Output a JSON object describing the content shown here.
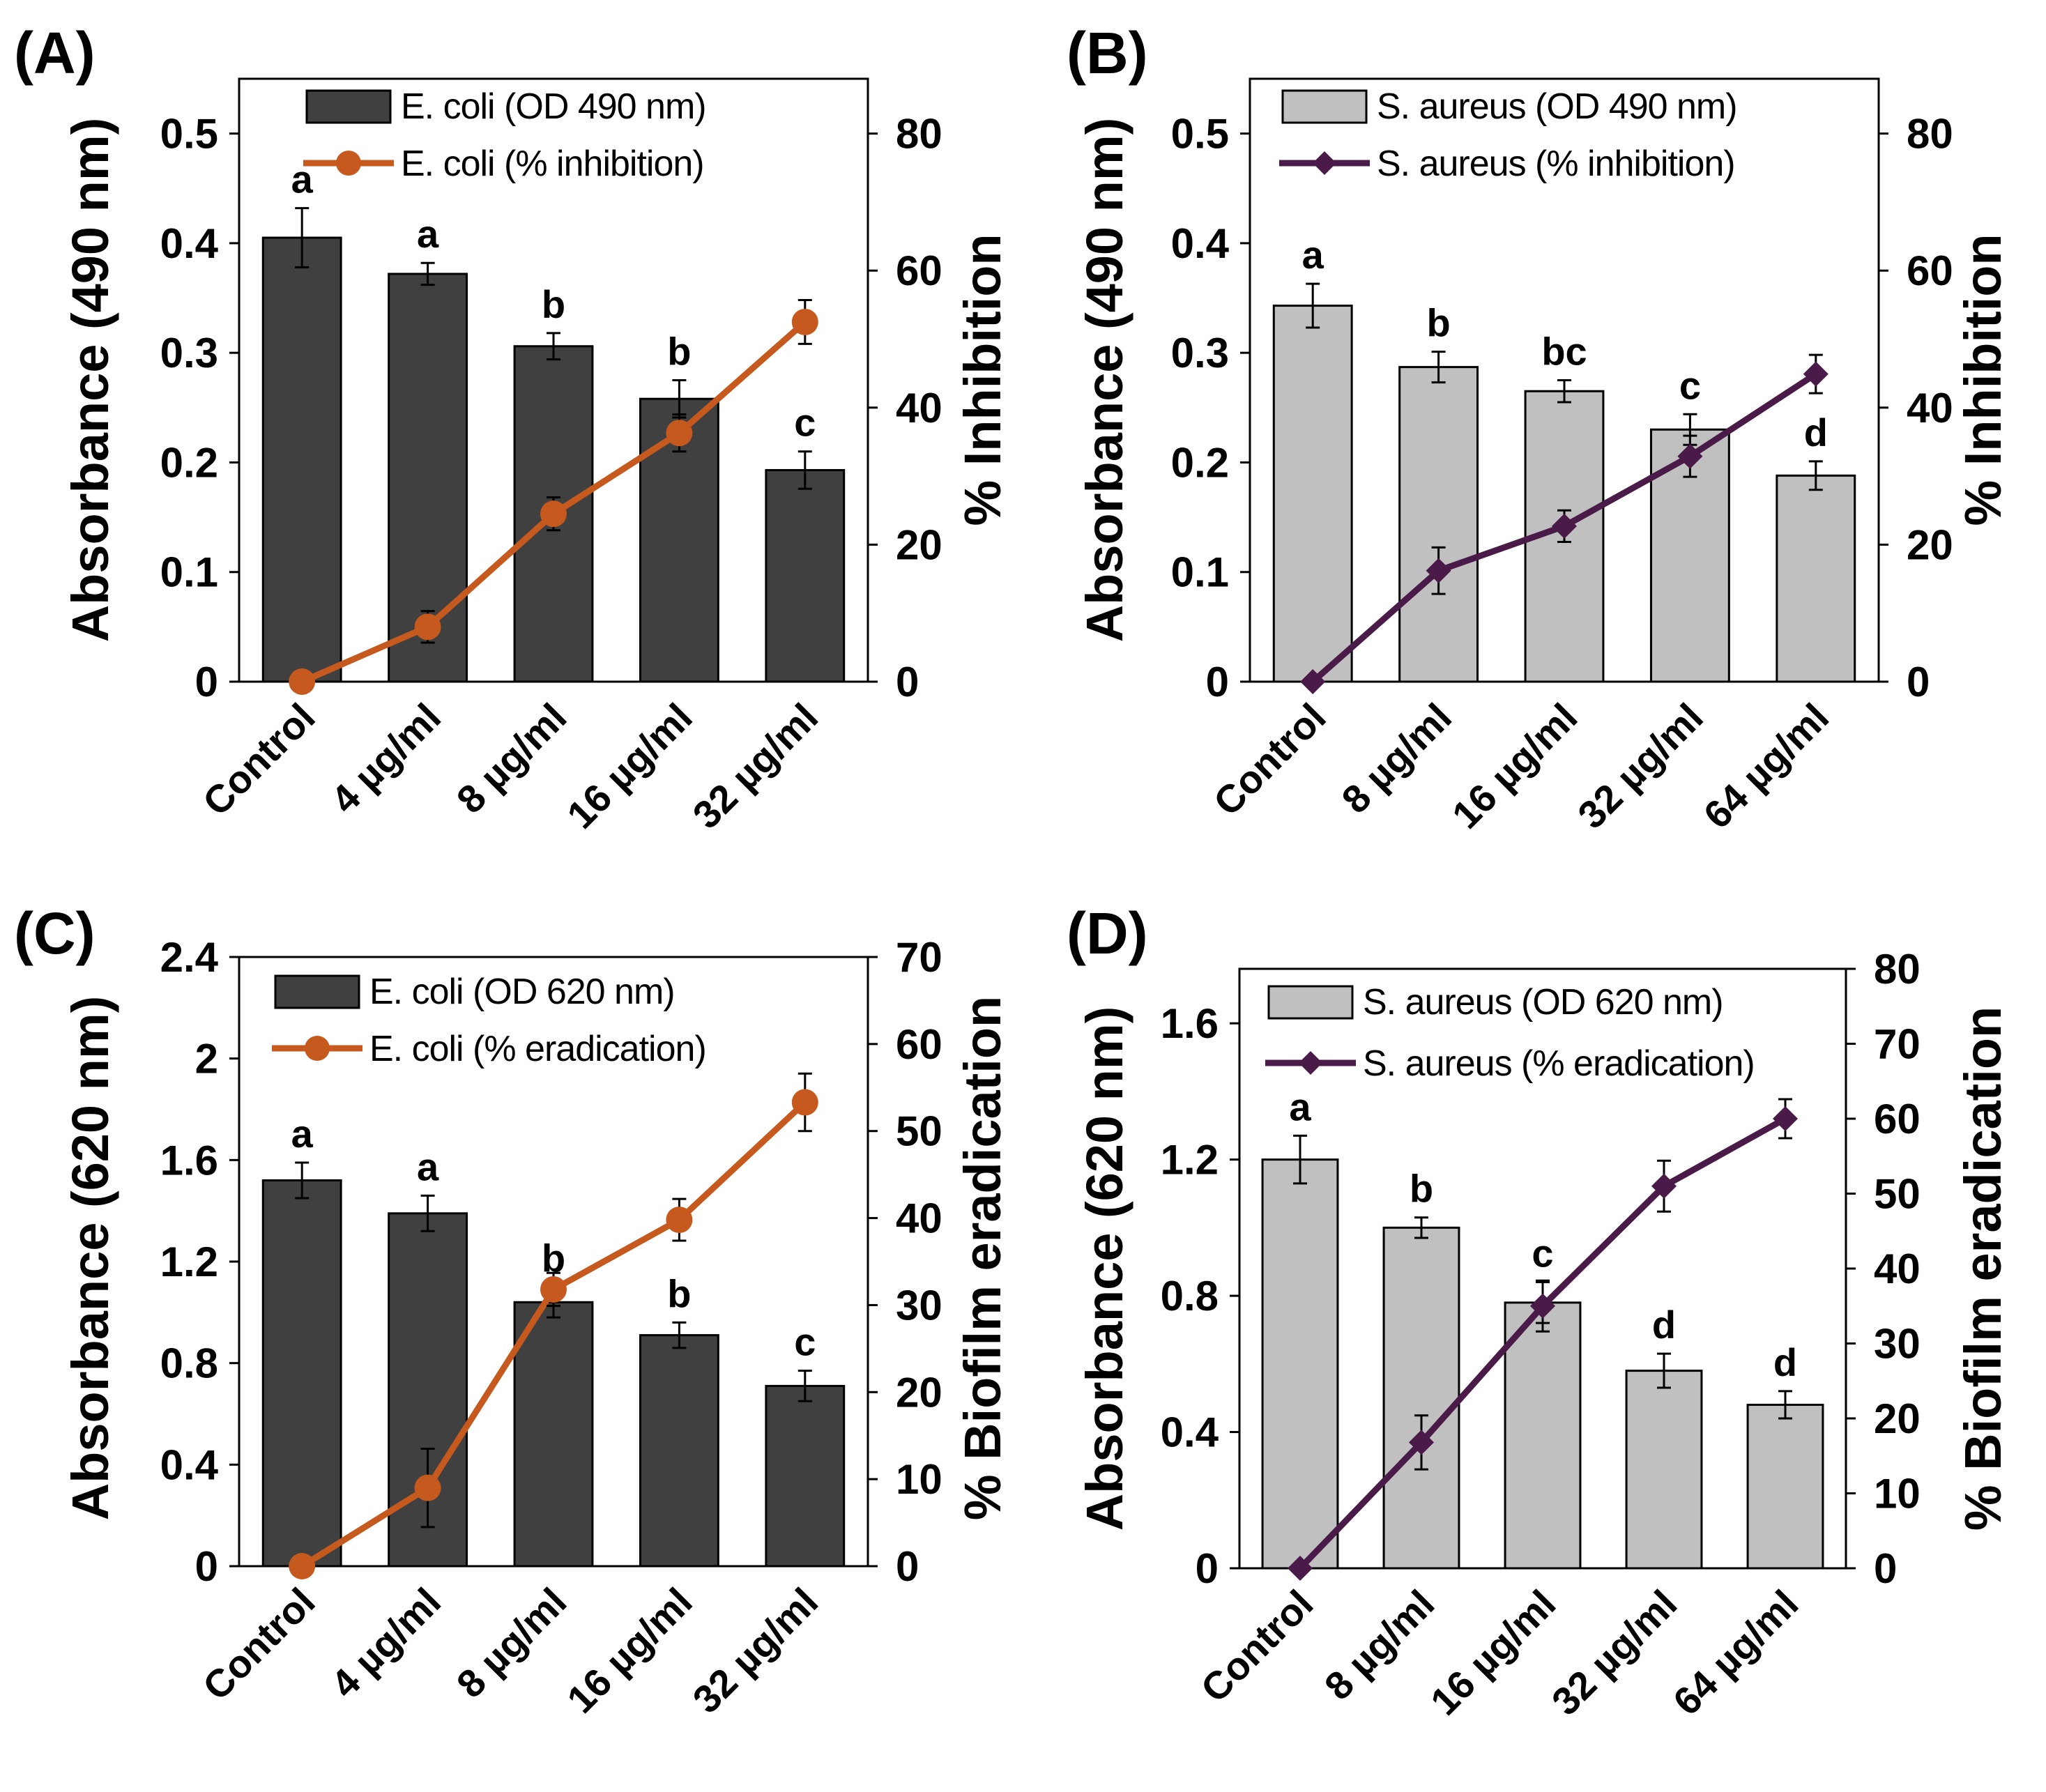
{
  "chart_data": [
    {
      "type": "bar",
      "panel_label": "(A)",
      "categories": [
        "Control",
        "4 µg/ml",
        "8 µg/ml",
        "16 µg/ml",
        "32 µg/ml"
      ],
      "ylabel": "Absorbance (490 nm)",
      "y2label": "% Inhibition",
      "ylim": [
        0,
        0.55
      ],
      "y2lim": [
        0,
        88
      ],
      "yticks": [
        "0",
        "0.1",
        "0.2",
        "0.3",
        "0.4",
        "0.5"
      ],
      "y2ticks": [
        "0",
        "20",
        "40",
        "60",
        "80"
      ],
      "bar_color": "#404040",
      "line_color": "#c65a1e",
      "marker": "circle",
      "legend_position": "top",
      "series": [
        {
          "name": "E. coli (OD 490 nm)",
          "kind": "bar",
          "axis": "left",
          "values": [
            0.405,
            0.372,
            0.306,
            0.258,
            0.193
          ],
          "errors": [
            0.027,
            0.01,
            0.012,
            0.017,
            0.017
          ],
          "significance": [
            "a",
            "a",
            "b",
            "b",
            "c"
          ]
        },
        {
          "name": "E. coli (% inhibition)",
          "kind": "line",
          "axis": "right",
          "values": [
            0,
            8,
            24.5,
            36.3,
            52.5
          ],
          "errors": [
            0,
            2.3,
            2.4,
            2.7,
            3.2
          ]
        }
      ]
    },
    {
      "type": "bar",
      "panel_label": "(B)",
      "categories": [
        "Control",
        "8 µg/ml",
        "16 µg/ml",
        "32 µg/ml",
        "64 µg/ml"
      ],
      "ylabel": "Absorbance (490 nm)",
      "y2label": "% Inhibition",
      "ylim": [
        0,
        0.55
      ],
      "y2lim": [
        0,
        88
      ],
      "yticks": [
        "0",
        "0.1",
        "0.2",
        "0.3",
        "0.4",
        "0.5"
      ],
      "y2ticks": [
        "0",
        "20",
        "40",
        "60",
        "80"
      ],
      "bar_color": "#c0c0c0",
      "line_color": "#4a1a48",
      "marker": "diamond",
      "legend_position": "top",
      "series": [
        {
          "name": "S. aureus (OD 490 nm)",
          "kind": "bar",
          "axis": "left",
          "values": [
            0.343,
            0.287,
            0.265,
            0.23,
            0.188
          ],
          "errors": [
            0.02,
            0.014,
            0.01,
            0.014,
            0.013
          ],
          "significance": [
            "a",
            "b",
            "bc",
            "c",
            "d"
          ]
        },
        {
          "name": "S. aureus (% inhibition)",
          "kind": "line",
          "axis": "right",
          "values": [
            0,
            16.2,
            22.7,
            32.9,
            44.9
          ],
          "errors": [
            0,
            3.4,
            2.3,
            3.0,
            2.8
          ]
        }
      ]
    },
    {
      "type": "bar",
      "panel_label": "(C)",
      "categories": [
        "Control",
        "4 µg/ml",
        "8 µg/ml",
        "16 µg/ml",
        "32 µg/ml"
      ],
      "ylabel": "Absorbance (620 nm)",
      "y2label": "% Biofilm eradication",
      "ylim": [
        0,
        2.4
      ],
      "y2lim": [
        0,
        70
      ],
      "yticks": [
        "0",
        "0.4",
        "0.8",
        "1.2",
        "1.6",
        "2",
        "2.4"
      ],
      "y2ticks": [
        "0",
        "10",
        "20",
        "30",
        "40",
        "50",
        "60",
        "70"
      ],
      "bar_color": "#404040",
      "line_color": "#c65a1e",
      "marker": "circle",
      "legend_position": "top",
      "series": [
        {
          "name": "E. coli (OD 620 nm)",
          "kind": "bar",
          "axis": "left",
          "values": [
            1.52,
            1.39,
            1.04,
            0.91,
            0.71
          ],
          "errors": [
            0.07,
            0.07,
            0.06,
            0.05,
            0.06
          ],
          "significance": [
            "a",
            "a",
            "b",
            "b",
            "c"
          ]
        },
        {
          "name": "E. coli (% eradication)",
          "kind": "line",
          "axis": "right",
          "values": [
            0,
            9,
            31.8,
            39.8,
            53.3
          ],
          "errors": [
            0,
            4.5,
            1.9,
            2.4,
            3.3
          ]
        }
      ]
    },
    {
      "type": "bar",
      "panel_label": "(D)",
      "categories": [
        "Control",
        "8 µg/ml",
        "16 µg/ml",
        "32 µg/ml",
        "64 µg/ml"
      ],
      "ylabel": "Absorbance (620 nm)",
      "y2label": "% Biofilm eradication",
      "ylim": [
        0,
        1.76
      ],
      "y2lim": [
        0,
        80
      ],
      "yticks": [
        "0",
        "0.4",
        "0.8",
        "1.2",
        "1.6"
      ],
      "y2ticks": [
        "0",
        "10",
        "20",
        "30",
        "40",
        "50",
        "60",
        "70",
        "80"
      ],
      "bar_color": "#c0c0c0",
      "line_color": "#4a1a48",
      "marker": "diamond",
      "legend_position": "top",
      "series": [
        {
          "name": "S. aureus (OD 620 nm)",
          "kind": "bar",
          "axis": "left",
          "values": [
            1.2,
            1.0,
            0.78,
            0.58,
            0.48
          ],
          "errors": [
            0.07,
            0.03,
            0.06,
            0.05,
            0.04
          ],
          "significance": [
            "a",
            "b",
            "c",
            "d",
            "d"
          ]
        },
        {
          "name": "S. aureus (% eradication)",
          "kind": "line",
          "axis": "right",
          "values": [
            0,
            16.8,
            35,
            51,
            60
          ],
          "errors": [
            0,
            3.6,
            3.4,
            3.4,
            2.6
          ]
        }
      ]
    }
  ]
}
